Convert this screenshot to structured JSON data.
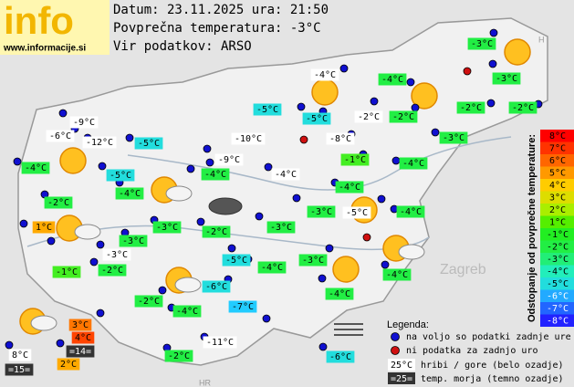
{
  "header": {
    "logo": "info",
    "url": "www.informacije.si",
    "date": "Datum: 23.11.2025 ura: 21:50",
    "average": "Povprečna temperatura: -3°C",
    "source": "Vir podatkov: ARSO"
  },
  "map_labels": [
    "Zagreb",
    "HR",
    "H"
  ],
  "stations": [
    {
      "label": "-3°C",
      "color": "#22ee44"
    },
    {
      "label": "-4°C",
      "color": "#ffffff"
    },
    {
      "label": "-4°C",
      "color": "#22ee44"
    },
    {
      "label": "-3°C",
      "color": "#22ee44"
    },
    {
      "label": "-5°C",
      "color": "#22dddd"
    },
    {
      "label": "-5°C",
      "color": "#22dddd"
    },
    {
      "label": "-2°C",
      "color": "#ffffff"
    },
    {
      "label": "-2°C",
      "color": "#22ee44"
    },
    {
      "label": "-2°C",
      "color": "#22ee44"
    },
    {
      "label": "-2°C",
      "color": "#22ee44"
    },
    {
      "label": "-9°C",
      "color": "#ffffff"
    },
    {
      "label": "-6°C",
      "color": "#ffffff"
    },
    {
      "label": "-12°C",
      "color": "#ffffff"
    },
    {
      "label": "-5°C",
      "color": "#22dddd"
    },
    {
      "label": "-10°C",
      "color": "#ffffff"
    },
    {
      "label": "-8°C",
      "color": "#ffffff"
    },
    {
      "label": "-3°C",
      "color": "#22ee44"
    },
    {
      "label": "-4°C",
      "color": "#22ee44"
    },
    {
      "label": "-9°C",
      "color": "#ffffff"
    },
    {
      "label": "-1°C",
      "color": "#44ee22"
    },
    {
      "label": "-4°C",
      "color": "#22ee44"
    },
    {
      "label": "-5°C",
      "color": "#22dddd"
    },
    {
      "label": "-4°C",
      "color": "#22ee44"
    },
    {
      "label": "-4°C",
      "color": "#ffffff"
    },
    {
      "label": "-4°C",
      "color": "#22ee44"
    },
    {
      "label": "-4°C",
      "color": "#22ee44"
    },
    {
      "label": "-2°C",
      "color": "#22ee44"
    },
    {
      "label": "-3°C",
      "color": "#22ee44"
    },
    {
      "label": "-5°C",
      "color": "#ffffff"
    },
    {
      "label": "-4°C",
      "color": "#22ee44"
    },
    {
      "label": "1°C",
      "color": "#ffaa00"
    },
    {
      "label": "-3°C",
      "color": "#22ee44"
    },
    {
      "label": "-2°C",
      "color": "#22ee44"
    },
    {
      "label": "-3°C",
      "color": "#22ee44"
    },
    {
      "label": "-3°C",
      "color": "#22ee44"
    },
    {
      "label": "-3°C",
      "color": "#ffffff"
    },
    {
      "label": "-5°C",
      "color": "#22dddd"
    },
    {
      "label": "-3°C",
      "color": "#22ee44"
    },
    {
      "label": "-1°C",
      "color": "#44ee22"
    },
    {
      "label": "-2°C",
      "color": "#22ee44"
    },
    {
      "label": "-4°C",
      "color": "#22ee44"
    },
    {
      "label": "-4°C",
      "color": "#22ee44"
    },
    {
      "label": "-6°C",
      "color": "#22dddd"
    },
    {
      "label": "-2°C",
      "color": "#22ee44"
    },
    {
      "label": "-4°C",
      "color": "#22ee44"
    },
    {
      "label": "-7°C",
      "color": "#22ccff"
    },
    {
      "label": "-4°C",
      "color": "#22ee44"
    },
    {
      "label": "3°C",
      "color": "#ff7700"
    },
    {
      "label": "4°C",
      "color": "#ff4400"
    },
    {
      "label": "-11°C",
      "color": "#ffffff"
    },
    {
      "label": "-2°C",
      "color": "#22ee44"
    },
    {
      "label": "-6°C",
      "color": "#22dddd"
    },
    {
      "label": "8°C",
      "color": "#ffffff"
    },
    {
      "label": "2°C",
      "color": "#ffaa00"
    }
  ],
  "sea": [
    {
      "label": "=14="
    },
    {
      "label": "=15="
    }
  ],
  "scale": {
    "title": "Odstopanje od povprečne temperature:",
    "items": [
      {
        "label": "8°C",
        "color": "#ff0000"
      },
      {
        "label": "7°C",
        "color": "#ff3300"
      },
      {
        "label": "6°C",
        "color": "#ff6600"
      },
      {
        "label": "5°C",
        "color": "#ff9900"
      },
      {
        "label": "4°C",
        "color": "#ffcc00"
      },
      {
        "label": "3°C",
        "color": "#dddd00"
      },
      {
        "label": "2°C",
        "color": "#aaee00"
      },
      {
        "label": "1°C",
        "color": "#55ee00"
      },
      {
        "label": "-1°C",
        "color": "#22ee22"
      },
      {
        "label": "-2°C",
        "color": "#22ee44"
      },
      {
        "label": "-3°C",
        "color": "#22ee77"
      },
      {
        "label": "-4°C",
        "color": "#22eebb"
      },
      {
        "label": "-5°C",
        "color": "#22dddd"
      },
      {
        "label": "-6°C",
        "color": "#22aaff"
      },
      {
        "label": "-7°C",
        "color": "#2266ff"
      },
      {
        "label": "-8°C",
        "color": "#2222ff"
      }
    ]
  },
  "legend": {
    "title": "Legenda:",
    "available": "na voljo so podatki zadnje ure",
    "missing": "ni podatka za zadnjo uro",
    "mountain_sample": "25°C",
    "mountain": "hribi / gore (belo ozadje)",
    "sea_sample": "=25=",
    "sea": "temp. morja (temno ozadje)"
  }
}
